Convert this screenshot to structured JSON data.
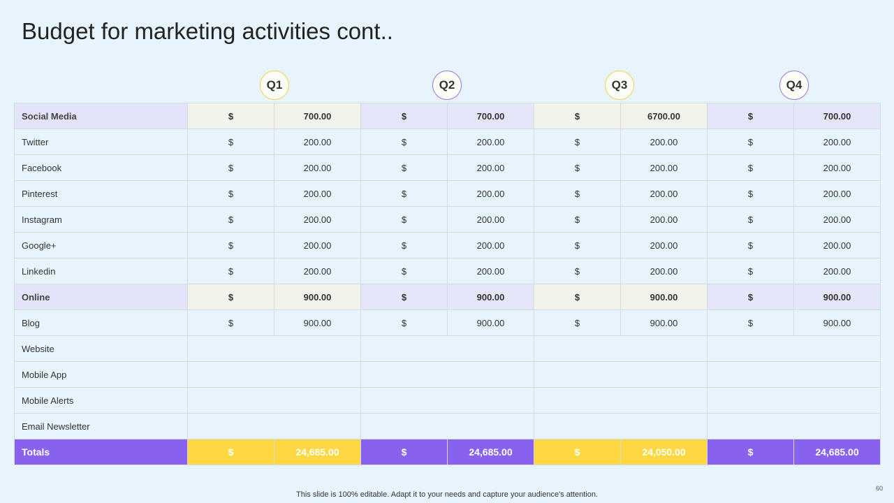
{
  "title": "Budget for marketing activities cont..",
  "table": {
    "quarters": [
      "Q1",
      "Q2",
      "Q3",
      "Q4"
    ],
    "sections": [
      {
        "header": {
          "label": "Social Media",
          "cells": [
            [
              "$",
              "700.00"
            ],
            [
              "$",
              "700.00"
            ],
            [
              "$",
              "6700.00"
            ],
            [
              "$",
              "700.00"
            ]
          ]
        },
        "rows": [
          {
            "label": "Twitter",
            "cells": [
              [
                "$",
                "200.00"
              ],
              [
                "$",
                "200.00"
              ],
              [
                "$",
                "200.00"
              ],
              [
                "$",
                "200.00"
              ]
            ]
          },
          {
            "label": "Facebook",
            "cells": [
              [
                "$",
                "200.00"
              ],
              [
                "$",
                "200.00"
              ],
              [
                "$",
                "200.00"
              ],
              [
                "$",
                "200.00"
              ]
            ]
          },
          {
            "label": "Pinterest",
            "cells": [
              [
                "$",
                "200.00"
              ],
              [
                "$",
                "200.00"
              ],
              [
                "$",
                "200.00"
              ],
              [
                "$",
                "200.00"
              ]
            ]
          },
          {
            "label": "Instagram",
            "cells": [
              [
                "$",
                "200.00"
              ],
              [
                "$",
                "200.00"
              ],
              [
                "$",
                "200.00"
              ],
              [
                "$",
                "200.00"
              ]
            ]
          },
          {
            "label": "Google+",
            "cells": [
              [
                "$",
                "200.00"
              ],
              [
                "$",
                "200.00"
              ],
              [
                "$",
                "200.00"
              ],
              [
                "$",
                "200.00"
              ]
            ]
          },
          {
            "label": "Linkedin",
            "cells": [
              [
                "$",
                "200.00"
              ],
              [
                "$",
                "200.00"
              ],
              [
                "$",
                "200.00"
              ],
              [
                "$",
                "200.00"
              ]
            ]
          }
        ]
      },
      {
        "header": {
          "label": "Online",
          "cells": [
            [
              "$",
              "900.00"
            ],
            [
              "$",
              "900.00"
            ],
            [
              "$",
              "900.00"
            ],
            [
              "$",
              "900.00"
            ]
          ]
        },
        "rows": [
          {
            "label": "Blog",
            "cells": [
              [
                "$",
                "900.00"
              ],
              [
                "$",
                "900.00"
              ],
              [
                "$",
                "900.00"
              ],
              [
                "$",
                "900.00"
              ]
            ]
          },
          {
            "label": "Website"
          },
          {
            "label": "Mobile App"
          },
          {
            "label": "Mobile Alerts"
          },
          {
            "label": "Email Newsletter"
          }
        ]
      }
    ],
    "totals": {
      "label": "Totals",
      "cells": [
        [
          "$",
          "24,685.00"
        ],
        [
          "$",
          "24,685.00"
        ],
        [
          "$",
          "24,050.00"
        ],
        [
          "$",
          "24,685.00"
        ]
      ]
    }
  },
  "footer": "This slide is 100% editable. Adapt it to your needs and capture your audience's attention.",
  "page_number": "60"
}
